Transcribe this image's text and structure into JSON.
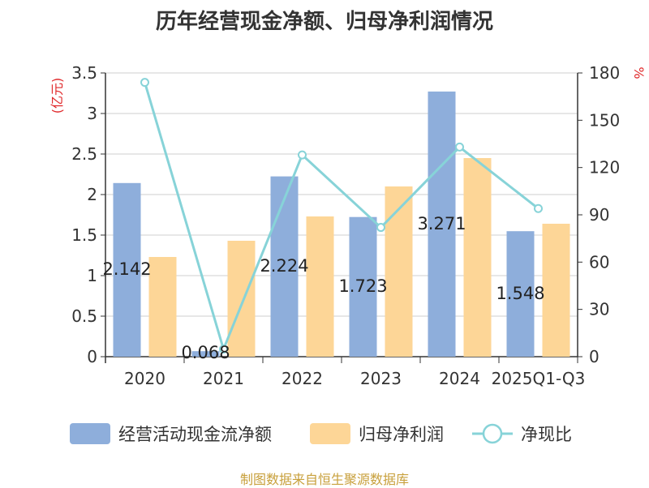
{
  "title": "历年经营现金净额、归母净利润情况",
  "source": "制图数据来自恒生聚源数据库",
  "chart_data": {
    "type": "bar",
    "categories": [
      "2020",
      "2021",
      "2022",
      "2023",
      "2024",
      "2025Q1-Q3"
    ],
    "y_left": {
      "unit": "(亿元)",
      "min": 0,
      "max": 3.5,
      "ticks": [
        "0",
        "0.5",
        "1",
        "1.5",
        "2",
        "2.5",
        "3",
        "3.5"
      ]
    },
    "y_right": {
      "unit": "%",
      "min": 0,
      "max": 180,
      "ticks": [
        "0",
        "30",
        "60",
        "90",
        "120",
        "150",
        "180"
      ]
    },
    "series": [
      {
        "name": "经营活动现金流净额",
        "type": "bar",
        "axis": "left",
        "color": "#8eaedb",
        "values": [
          2.142,
          0.068,
          2.224,
          1.723,
          3.271,
          1.548
        ],
        "labels": [
          "2.142",
          "0.068",
          "2.224",
          "1.723",
          "3.271",
          "1.548"
        ]
      },
      {
        "name": "归母净利润",
        "type": "bar",
        "axis": "left",
        "color": "#fdd697",
        "values": [
          1.23,
          1.43,
          1.73,
          2.1,
          2.45,
          1.64
        ]
      },
      {
        "name": "净现比",
        "type": "line",
        "axis": "right",
        "color": "#87d3d8",
        "values": [
          174,
          4.8,
          128,
          82,
          133,
          94
        ]
      }
    ],
    "legend_position": "bottom",
    "grid": "horizontal"
  }
}
